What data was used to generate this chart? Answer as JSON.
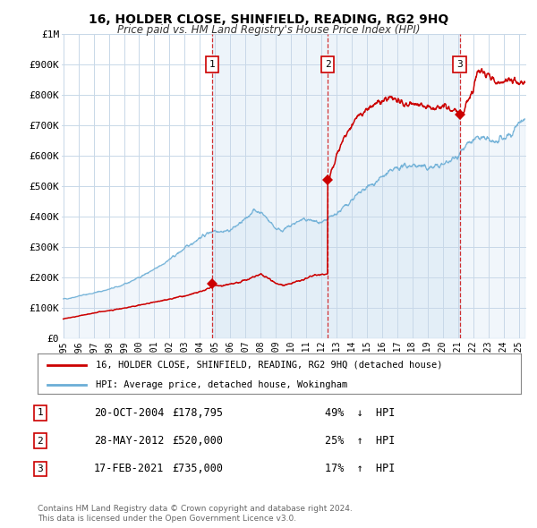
{
  "title": "16, HOLDER CLOSE, SHINFIELD, READING, RG2 9HQ",
  "subtitle": "Price paid vs. HM Land Registry's House Price Index (HPI)",
  "legend_entry1": "16, HOLDER CLOSE, SHINFIELD, READING, RG2 9HQ (detached house)",
  "legend_entry2": "HPI: Average price, detached house, Wokingham",
  "transactions": [
    {
      "num": 1,
      "date": "20-OCT-2004",
      "date_dec": 2004.8,
      "price": 178795,
      "pct": "49%",
      "dir": "↓"
    },
    {
      "num": 2,
      "date": "28-MAY-2012",
      "date_dec": 2012.42,
      "price": 520000,
      "pct": "25%",
      "dir": "↑"
    },
    {
      "num": 3,
      "date": "17-FEB-2021",
      "date_dec": 2021.12,
      "price": 735000,
      "pct": "17%",
      "dir": "↑"
    }
  ],
  "hpi_color": "#6baed6",
  "hpi_fill_color": "#c8ddf0",
  "price_color": "#cc0000",
  "background_color": "#ffffff",
  "plot_bg_color": "#ffffff",
  "grid_color": "#c8d8e8",
  "ylim": [
    0,
    1000000
  ],
  "yticks": [
    0,
    100000,
    200000,
    300000,
    400000,
    500000,
    600000,
    700000,
    800000,
    900000,
    1000000
  ],
  "ytick_labels": [
    "£0",
    "£100K",
    "£200K",
    "£300K",
    "£400K",
    "£500K",
    "£600K",
    "£700K",
    "£800K",
    "£900K",
    "£1M"
  ],
  "xlim_start": 1994.9,
  "xlim_end": 2025.5,
  "footnote1": "Contains HM Land Registry data © Crown copyright and database right 2024.",
  "footnote2": "This data is licensed under the Open Government Licence v3.0."
}
